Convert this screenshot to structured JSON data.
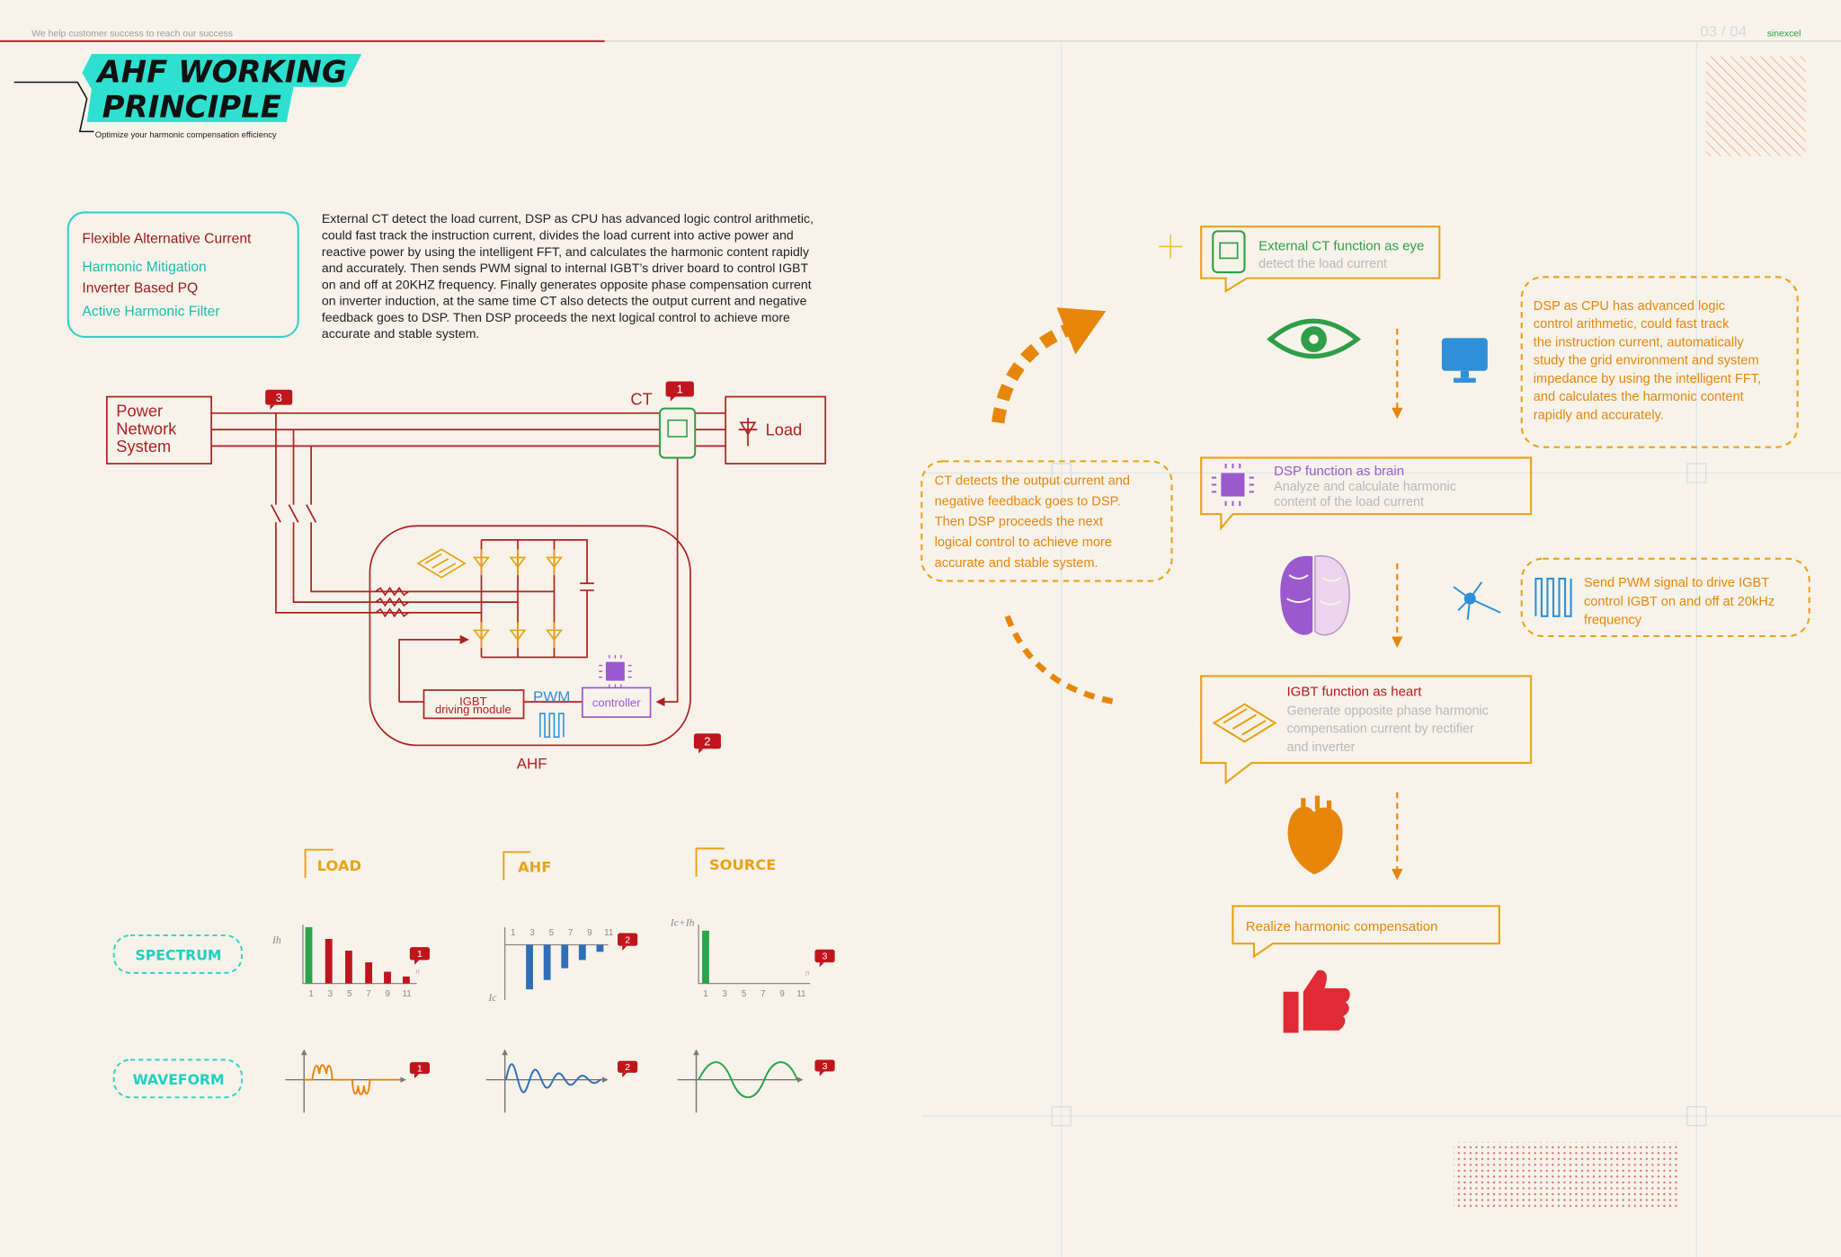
{
  "header": {
    "tagline": "We help customer success to reach our success",
    "page": "03 / 04",
    "brand": "sinexcel"
  },
  "title": {
    "line1": "AHF WORKING",
    "line2": "PRINCIPLE",
    "subtitle": "Optimize your harmonic compensation efficiency"
  },
  "keywords": [
    "Flexible Alternative Current",
    "Harmonic Mitigation",
    "Inverter Based PQ",
    "Active Harmonic Filter"
  ],
  "description": [
    "External CT detect the load current, DSP as CPU has advanced logic control arithmetic,",
    "could fast track the instruction current, divides the load current into active power and",
    "reactive power by using the intelligent FFT, and calculates the harmonic content rapidly",
    "and accurately. Then sends PWM signal to internal IGBT’s driver board to control IGBT",
    "on and off at 20KHZ frequency. Finally generates opposite phase compensation current",
    "on inverter  induction, at the same time CT also detects the output current and negative",
    "feedback goes to DSP. Then DSP proceeds the next logical control to achieve more",
    "accurate and stable system."
  ],
  "diagram": {
    "source": [
      "Power",
      "Network",
      "System"
    ],
    "ct": "CT",
    "load": "Load",
    "markers": [
      "1",
      "2",
      "3"
    ],
    "igbt_module": [
      "IGBT",
      "driving module"
    ],
    "pwm": "PWM",
    "controller": "controller",
    "ahf": "AHF"
  },
  "comparison": {
    "columns": [
      "LOAD",
      "AHF",
      "SOURCE"
    ],
    "rows": [
      "SPECTRUM",
      "WAVEFORM"
    ],
    "axis_labels": [
      "Ih",
      "Ic",
      "Ic+Ih"
    ],
    "harmonic_orders": [
      "1",
      "3",
      "5",
      "7",
      "9",
      "11"
    ],
    "axis_end": "n",
    "badges": [
      "1",
      "2",
      "3"
    ]
  },
  "flow": {
    "steps": [
      {
        "title": "External CT function as eye",
        "text": [
          "detect the load current"
        ]
      },
      {
        "title": "DSP  function as brain",
        "text": [
          "Analyze and calculate harmonic",
          "content of  the load current"
        ]
      },
      {
        "title": "IGBT  function as heart",
        "text": [
          "Generate opposite phase harmonic",
          "compensation current  by rectifier",
          "and  inverter"
        ]
      }
    ],
    "result": "Realize  harmonic compensation",
    "notes": [
      [
        "DSP as CPU has advanced logic",
        "control arithmetic, could fast track",
        "the instruction current, automatically",
        "study the grid environment and system",
        "impedance by using the intelligent FFT,",
        "and calculates the harmonic content",
        "rapidly and accurately."
      ],
      [
        "Send PWM signal to drive IGBT",
        "control IGBT on and off at 20kHz",
        "frequency"
      ],
      [
        "CT detects the output current and",
        "negative feedback goes to DSP.",
        "Then DSP proceeds the next",
        "logical control to achieve more",
        "accurate and stable system."
      ]
    ]
  }
}
